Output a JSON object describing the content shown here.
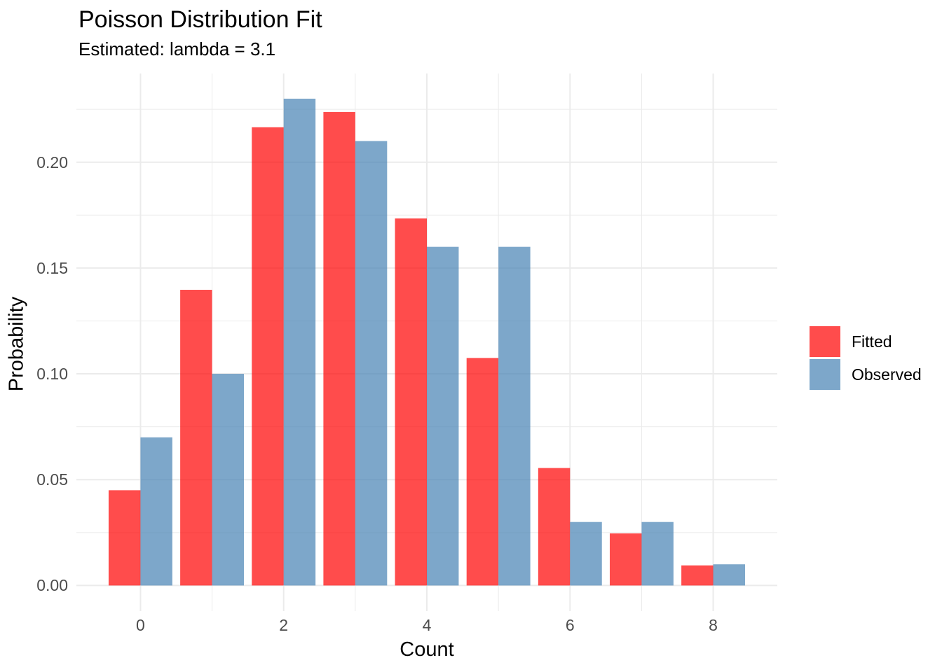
{
  "title": "Poisson Distribution Fit",
  "subtitle": "Estimated: lambda = 3.1",
  "chart_data": {
    "type": "bar",
    "grouping": "dodged",
    "title": "Poisson Distribution Fit",
    "subtitle": "Estimated: lambda = 3.1",
    "xlabel": "Count",
    "ylabel": "Probability",
    "categories": [
      0,
      1,
      2,
      3,
      4,
      5,
      6,
      7,
      8
    ],
    "series": [
      {
        "name": "Fitted",
        "color": "rgba(255,0,0,0.7)",
        "color_hex": "#FF4D4D",
        "values": [
          0.045,
          0.1397,
          0.2165,
          0.2237,
          0.1734,
          0.1075,
          0.0555,
          0.0246,
          0.0095
        ]
      },
      {
        "name": "Observed",
        "color": "rgba(70,130,180,0.7)",
        "color_hex": "#7EA8CB",
        "values": [
          0.07,
          0.1,
          0.23,
          0.21,
          0.16,
          0.16,
          0.03,
          0.03,
          0.01
        ]
      }
    ],
    "bar_width_units": 0.445,
    "x_ticks": [
      0,
      2,
      4,
      6,
      8
    ],
    "x_tick_labels": [
      "0",
      "2",
      "4",
      "6",
      "8"
    ],
    "x_minor": [
      1,
      3,
      5,
      7
    ],
    "y_ticks": [
      0.0,
      0.05,
      0.1,
      0.15,
      0.2
    ],
    "y_tick_labels": [
      "0.00",
      "0.05",
      "0.10",
      "0.15",
      "0.20"
    ],
    "y_minor": [
      0.025,
      0.075,
      0.125,
      0.175,
      0.225
    ],
    "xlim": [
      -0.895,
      8.895
    ],
    "ylim": [
      -0.0121,
      0.2419
    ],
    "grid": "on",
    "grid_color": "#EBEBEB",
    "axis_text_color": "#4D4D4D",
    "background": "#FFFFFF",
    "legend_position": "right",
    "legend": [
      "Fitted",
      "Observed"
    ]
  }
}
